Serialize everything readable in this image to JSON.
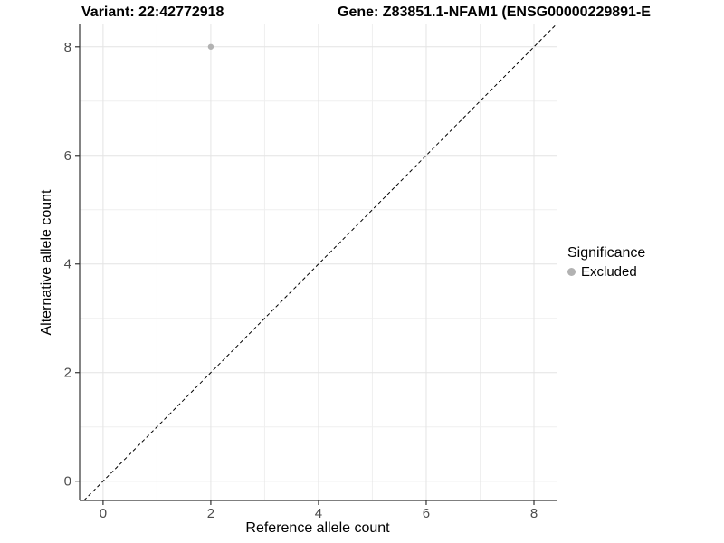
{
  "titles": {
    "variant": "Variant: 22:42772918",
    "gene": "Gene: Z83851.1-NFAM1 (ENSG00000229891-E"
  },
  "chart_data": {
    "type": "scatter",
    "titles": [
      "Variant: 22:42772918",
      "Gene: Z83851.1-NFAM1 (ENSG00000229891-E"
    ],
    "xlabel": "Reference allele count",
    "ylabel": "Alternative allele count",
    "xlim": [
      -0.435,
      8.42
    ],
    "ylim": [
      -0.355,
      8.43
    ],
    "x_ticks": [
      0,
      2,
      4,
      6,
      8
    ],
    "y_ticks": [
      0,
      2,
      4,
      6,
      8
    ],
    "x_minor_ticks": [
      1,
      3,
      5,
      7
    ],
    "y_minor_ticks": [
      1,
      3,
      5,
      7
    ],
    "grid": true,
    "series": [
      {
        "name": "Excluded",
        "color": "#b2b2b2",
        "points": [
          {
            "x": 2,
            "y": 8
          }
        ]
      }
    ],
    "reference_line": {
      "type": "identity",
      "slope": 1,
      "intercept": 0,
      "style": "dashed",
      "color": "#000000"
    },
    "legend": {
      "title": "Significance",
      "position": "right",
      "entries": [
        {
          "label": "Excluded",
          "color": "#b2b2b2"
        }
      ]
    },
    "style": {
      "major_grid_color": "#e4e4e4",
      "minor_grid_color": "#efefef",
      "axis_line_color": "#333333",
      "tick_color": "#333333",
      "tick_label_color": "#4d4d4d",
      "point_radius": 3.2
    }
  }
}
